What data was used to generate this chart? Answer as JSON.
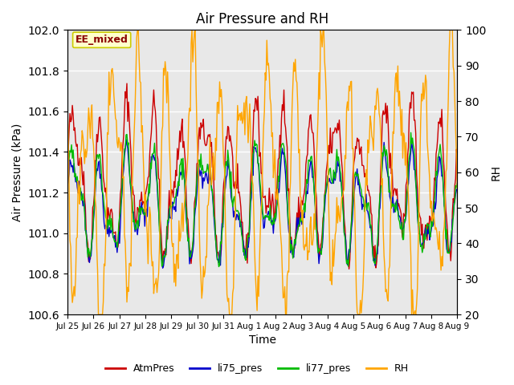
{
  "title": "Air Pressure and RH",
  "xlabel": "Time",
  "ylabel_left": "Air Pressure (kPa)",
  "ylabel_right": "RH",
  "ylim_left": [
    100.6,
    102.0
  ],
  "ylim_right": [
    20,
    100
  ],
  "yticks_left": [
    100.6,
    100.8,
    101.0,
    101.2,
    101.4,
    101.6,
    101.8,
    102.0
  ],
  "yticks_right": [
    20,
    30,
    40,
    50,
    60,
    70,
    80,
    90,
    100
  ],
  "xtick_labels": [
    "Jul 25",
    "Jul 26",
    "Jul 27",
    "Jul 28",
    "Jul 29",
    "Jul 30",
    "Jul 31",
    "Aug 1",
    "Aug 2",
    "Aug 3",
    "Aug 4",
    "Aug 5",
    "Aug 6",
    "Aug 7",
    "Aug 8",
    "Aug 9"
  ],
  "annotation_text": "EE_mixed",
  "colors": {
    "AtmPres": "#CC0000",
    "li75_pres": "#0000CC",
    "li77_pres": "#00BB00",
    "RH": "#FFA500"
  },
  "background_color": "#E8E8E8",
  "grid_color": "#FFFFFF",
  "seed": 42,
  "n_points": 480
}
